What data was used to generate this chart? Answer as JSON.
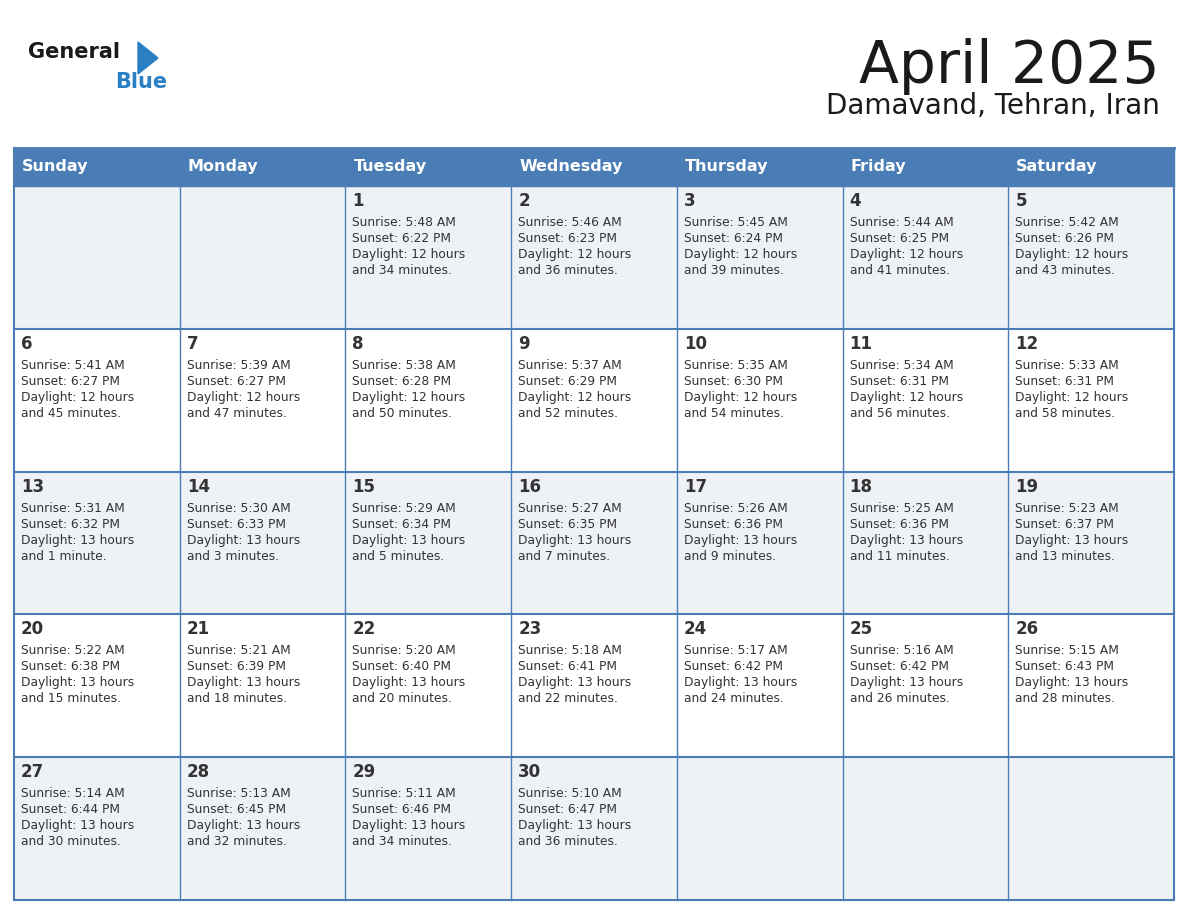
{
  "title": "April 2025",
  "subtitle": "Damavand, Tehran, Iran",
  "days_of_week": [
    "Sunday",
    "Monday",
    "Tuesday",
    "Wednesday",
    "Thursday",
    "Friday",
    "Saturday"
  ],
  "header_bg": "#4a7db5",
  "header_text": "#ffffff",
  "row_bg_light": "#eef2f7",
  "row_bg_white": "#ffffff",
  "border_color": "#4a7db5",
  "text_color": "#333333",
  "title_color": "#1a1a1a",
  "logo_black": "#1a1a1a",
  "logo_blue": "#2b7fc3",
  "calendar": [
    [
      {
        "day": "",
        "sunrise": "",
        "sunset": "",
        "daylight": ""
      },
      {
        "day": "",
        "sunrise": "",
        "sunset": "",
        "daylight": ""
      },
      {
        "day": "1",
        "sunrise": "5:48 AM",
        "sunset": "6:22 PM",
        "daylight": "12 hours\nand 34 minutes."
      },
      {
        "day": "2",
        "sunrise": "5:46 AM",
        "sunset": "6:23 PM",
        "daylight": "12 hours\nand 36 minutes."
      },
      {
        "day": "3",
        "sunrise": "5:45 AM",
        "sunset": "6:24 PM",
        "daylight": "12 hours\nand 39 minutes."
      },
      {
        "day": "4",
        "sunrise": "5:44 AM",
        "sunset": "6:25 PM",
        "daylight": "12 hours\nand 41 minutes."
      },
      {
        "day": "5",
        "sunrise": "5:42 AM",
        "sunset": "6:26 PM",
        "daylight": "12 hours\nand 43 minutes."
      }
    ],
    [
      {
        "day": "6",
        "sunrise": "5:41 AM",
        "sunset": "6:27 PM",
        "daylight": "12 hours\nand 45 minutes."
      },
      {
        "day": "7",
        "sunrise": "5:39 AM",
        "sunset": "6:27 PM",
        "daylight": "12 hours\nand 47 minutes."
      },
      {
        "day": "8",
        "sunrise": "5:38 AM",
        "sunset": "6:28 PM",
        "daylight": "12 hours\nand 50 minutes."
      },
      {
        "day": "9",
        "sunrise": "5:37 AM",
        "sunset": "6:29 PM",
        "daylight": "12 hours\nand 52 minutes."
      },
      {
        "day": "10",
        "sunrise": "5:35 AM",
        "sunset": "6:30 PM",
        "daylight": "12 hours\nand 54 minutes."
      },
      {
        "day": "11",
        "sunrise": "5:34 AM",
        "sunset": "6:31 PM",
        "daylight": "12 hours\nand 56 minutes."
      },
      {
        "day": "12",
        "sunrise": "5:33 AM",
        "sunset": "6:31 PM",
        "daylight": "12 hours\nand 58 minutes."
      }
    ],
    [
      {
        "day": "13",
        "sunrise": "5:31 AM",
        "sunset": "6:32 PM",
        "daylight": "13 hours\nand 1 minute."
      },
      {
        "day": "14",
        "sunrise": "5:30 AM",
        "sunset": "6:33 PM",
        "daylight": "13 hours\nand 3 minutes."
      },
      {
        "day": "15",
        "sunrise": "5:29 AM",
        "sunset": "6:34 PM",
        "daylight": "13 hours\nand 5 minutes."
      },
      {
        "day": "16",
        "sunrise": "5:27 AM",
        "sunset": "6:35 PM",
        "daylight": "13 hours\nand 7 minutes."
      },
      {
        "day": "17",
        "sunrise": "5:26 AM",
        "sunset": "6:36 PM",
        "daylight": "13 hours\nand 9 minutes."
      },
      {
        "day": "18",
        "sunrise": "5:25 AM",
        "sunset": "6:36 PM",
        "daylight": "13 hours\nand 11 minutes."
      },
      {
        "day": "19",
        "sunrise": "5:23 AM",
        "sunset": "6:37 PM",
        "daylight": "13 hours\nand 13 minutes."
      }
    ],
    [
      {
        "day": "20",
        "sunrise": "5:22 AM",
        "sunset": "6:38 PM",
        "daylight": "13 hours\nand 15 minutes."
      },
      {
        "day": "21",
        "sunrise": "5:21 AM",
        "sunset": "6:39 PM",
        "daylight": "13 hours\nand 18 minutes."
      },
      {
        "day": "22",
        "sunrise": "5:20 AM",
        "sunset": "6:40 PM",
        "daylight": "13 hours\nand 20 minutes."
      },
      {
        "day": "23",
        "sunrise": "5:18 AM",
        "sunset": "6:41 PM",
        "daylight": "13 hours\nand 22 minutes."
      },
      {
        "day": "24",
        "sunrise": "5:17 AM",
        "sunset": "6:42 PM",
        "daylight": "13 hours\nand 24 minutes."
      },
      {
        "day": "25",
        "sunrise": "5:16 AM",
        "sunset": "6:42 PM",
        "daylight": "13 hours\nand 26 minutes."
      },
      {
        "day": "26",
        "sunrise": "5:15 AM",
        "sunset": "6:43 PM",
        "daylight": "13 hours\nand 28 minutes."
      }
    ],
    [
      {
        "day": "27",
        "sunrise": "5:14 AM",
        "sunset": "6:44 PM",
        "daylight": "13 hours\nand 30 minutes."
      },
      {
        "day": "28",
        "sunrise": "5:13 AM",
        "sunset": "6:45 PM",
        "daylight": "13 hours\nand 32 minutes."
      },
      {
        "day": "29",
        "sunrise": "5:11 AM",
        "sunset": "6:46 PM",
        "daylight": "13 hours\nand 34 minutes."
      },
      {
        "day": "30",
        "sunrise": "5:10 AM",
        "sunset": "6:47 PM",
        "daylight": "13 hours\nand 36 minutes."
      },
      {
        "day": "",
        "sunrise": "",
        "sunset": "",
        "daylight": ""
      },
      {
        "day": "",
        "sunrise": "",
        "sunset": "",
        "daylight": ""
      },
      {
        "day": "",
        "sunrise": "",
        "sunset": "",
        "daylight": ""
      }
    ]
  ]
}
